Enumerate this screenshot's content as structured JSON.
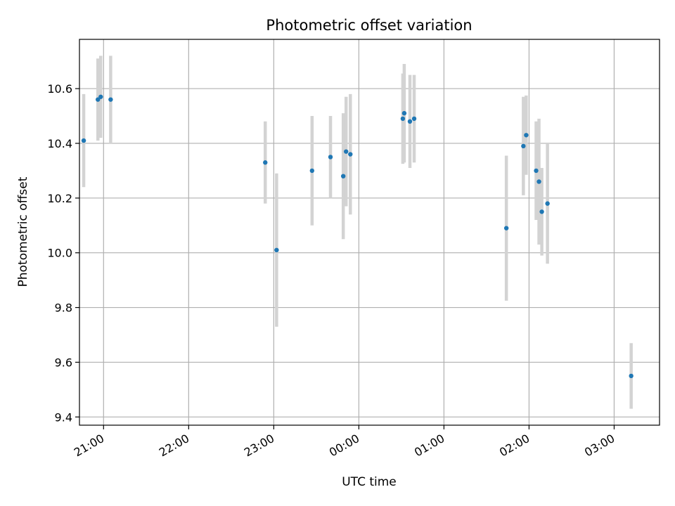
{
  "chart_data": {
    "type": "scatter",
    "title": "Photometric offset variation",
    "xlabel": "UTC time",
    "ylabel": "Photometric offset",
    "x_unit": "UTC time (hh:mm)",
    "xlim": [
      "20:43",
      "03:32"
    ],
    "ylim": [
      9.37,
      10.78
    ],
    "x_ticks": [
      "21:00",
      "22:00",
      "23:00",
      "00:00",
      "01:00",
      "02:00",
      "03:00"
    ],
    "y_ticks": [
      "9.4",
      "9.6",
      "9.8",
      "10.0",
      "10.2",
      "10.4",
      "10.6"
    ],
    "grid": true,
    "colors": {
      "points": "#1f77b4",
      "errorbars": "#d3d3d3",
      "grid": "#b0b0b0"
    },
    "points": [
      {
        "t": "20:46",
        "y": 10.41,
        "err": 0.17
      },
      {
        "t": "20:56",
        "y": 10.56,
        "err": 0.15
      },
      {
        "t": "20:58",
        "y": 10.57,
        "err": 0.15
      },
      {
        "t": "21:05",
        "y": 10.56,
        "err": 0.16
      },
      {
        "t": "22:54",
        "y": 10.33,
        "err": 0.15
      },
      {
        "t": "23:02",
        "y": 10.01,
        "err": 0.28
      },
      {
        "t": "23:27",
        "y": 10.3,
        "err": 0.2
      },
      {
        "t": "23:40",
        "y": 10.35,
        "err": 0.15
      },
      {
        "t": "23:49",
        "y": 10.28,
        "err": 0.23
      },
      {
        "t": "23:51",
        "y": 10.37,
        "err": 0.2
      },
      {
        "t": "23:54",
        "y": 10.36,
        "err": 0.22
      },
      {
        "t": "00:31",
        "y": 10.49,
        "err": 0.165
      },
      {
        "t": "00:32",
        "y": 10.51,
        "err": 0.18
      },
      {
        "t": "00:36",
        "y": 10.48,
        "err": 0.17
      },
      {
        "t": "00:39",
        "y": 10.49,
        "err": 0.16
      },
      {
        "t": "01:44",
        "y": 10.09,
        "err": 0.265
      },
      {
        "t": "01:56",
        "y": 10.39,
        "err": 0.18
      },
      {
        "t": "01:58",
        "y": 10.43,
        "err": 0.145
      },
      {
        "t": "02:05",
        "y": 10.3,
        "err": 0.18
      },
      {
        "t": "02:07",
        "y": 10.26,
        "err": 0.23
      },
      {
        "t": "02:09",
        "y": 10.15,
        "err": 0.16
      },
      {
        "t": "02:13",
        "y": 10.18,
        "err": 0.22
      },
      {
        "t": "03:12",
        "y": 9.55,
        "err": 0.12
      }
    ]
  }
}
